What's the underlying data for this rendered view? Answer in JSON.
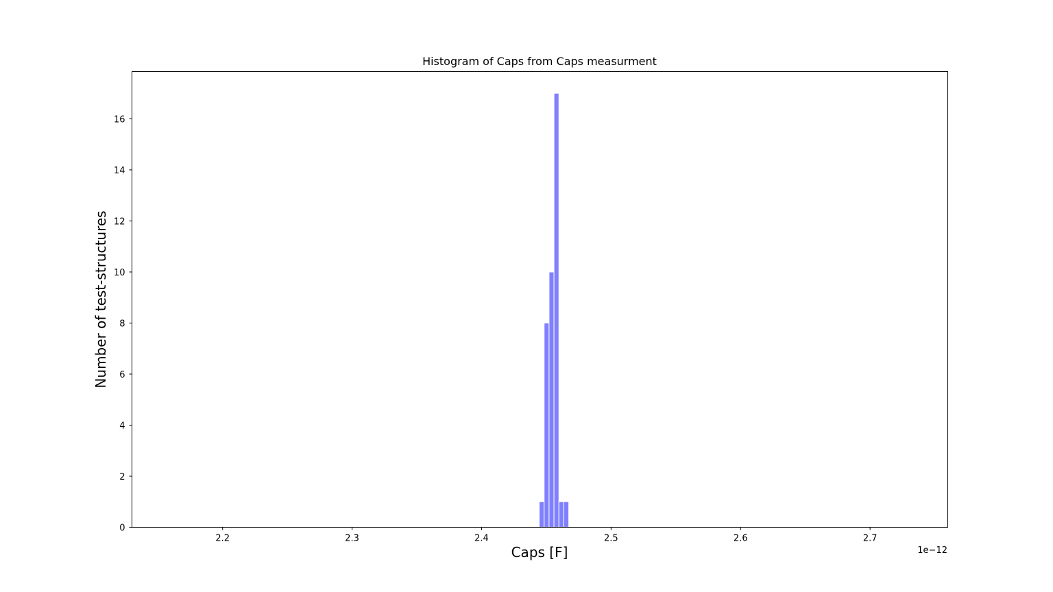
{
  "chart_data": {
    "type": "bar",
    "title": "Histogram of Caps from Caps measurment",
    "xlabel": "Caps [F]",
    "ylabel": "Number of test-structures",
    "x_offset_label": "1e−12",
    "bar_color": "#8080ff",
    "bar_edge_color": "#ffffff",
    "xlim": [
      2.13,
      2.76
    ],
    "ylim": [
      0,
      17.85
    ],
    "x_ticks": [
      2.2,
      2.3,
      2.4,
      2.5,
      2.6,
      2.7
    ],
    "y_ticks": [
      0,
      2,
      4,
      6,
      8,
      10,
      12,
      14,
      16
    ],
    "bin_width": 0.0038,
    "bins": [
      {
        "x": 2.4464,
        "count": 1
      },
      {
        "x": 2.4502,
        "count": 8
      },
      {
        "x": 2.454,
        "count": 10
      },
      {
        "x": 2.4578,
        "count": 17
      },
      {
        "x": 2.4616,
        "count": 1
      },
      {
        "x": 2.4654,
        "count": 1
      }
    ],
    "grid": false,
    "legend": false
  }
}
